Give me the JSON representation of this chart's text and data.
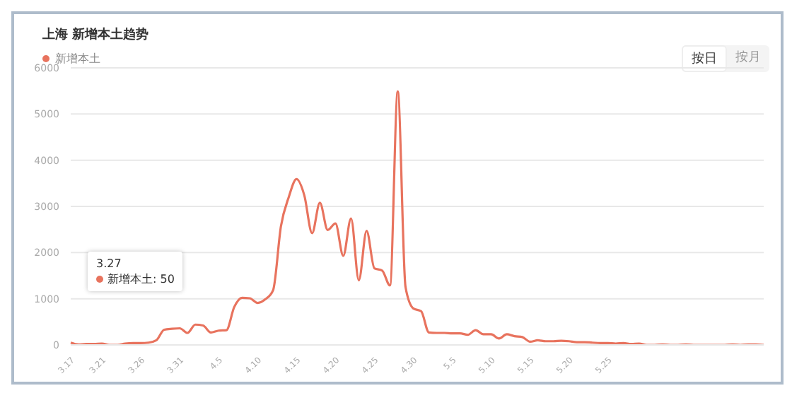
{
  "chart_data": {
    "type": "line",
    "title": "上海 新增本土趋势",
    "categories": [
      "3.17",
      null,
      null,
      null,
      "3.21",
      null,
      null,
      null,
      null,
      "3.26",
      null,
      null,
      null,
      null,
      "3.31",
      null,
      null,
      null,
      null,
      "4.5",
      null,
      null,
      null,
      null,
      "4.10",
      null,
      null,
      null,
      null,
      "4.15",
      null,
      null,
      null,
      null,
      "4.20",
      null,
      null,
      null,
      null,
      "4.25",
      null,
      null,
      null,
      null,
      "4.30",
      null,
      null,
      null,
      null,
      "5.5",
      null,
      null,
      null,
      null,
      "5.10",
      null,
      null,
      null,
      null,
      "5.15",
      null,
      null,
      null,
      null,
      "5.20",
      null,
      null,
      null,
      null,
      "5.25",
      null,
      null,
      null,
      null,
      null,
      null,
      null,
      null,
      null,
      null,
      null,
      null,
      null,
      null,
      null,
      null,
      null,
      null,
      null,
      null
    ],
    "series": [
      {
        "name": "新增本土",
        "color": "#e8735e",
        "values": [
          50,
          10,
          20,
          20,
          30,
          0,
          0,
          30,
          40,
          40,
          50,
          100,
          330,
          350,
          360,
          260,
          440,
          420,
          270,
          310,
          320,
          820,
          1020,
          1010,
          910,
          990,
          1190,
          2570,
          3200,
          3590,
          3240,
          2420,
          3080,
          2490,
          2630,
          1930,
          2740,
          1400,
          2470,
          1660,
          1610,
          1290,
          5490,
          1250,
          790,
          730,
          270,
          260,
          260,
          250,
          250,
          220,
          320,
          230,
          230,
          140,
          230,
          190,
          170,
          70,
          100,
          80,
          80,
          90,
          80,
          60,
          60,
          50,
          40,
          40,
          30,
          40,
          20,
          30,
          0,
          0,
          10,
          0,
          0,
          10,
          0,
          0,
          0,
          0,
          0,
          10,
          0,
          10,
          10,
          0
        ]
      }
    ],
    "ylim": [
      0,
      6000
    ],
    "yticks": [
      0,
      1000,
      2000,
      3000,
      4000,
      5000,
      6000
    ],
    "grid": "y",
    "legend": "top left",
    "marker": "none",
    "line_style": "solid",
    "annotations": [
      "3.27",
      "新增本土: 50",
      "按日",
      "按月"
    ]
  }
}
